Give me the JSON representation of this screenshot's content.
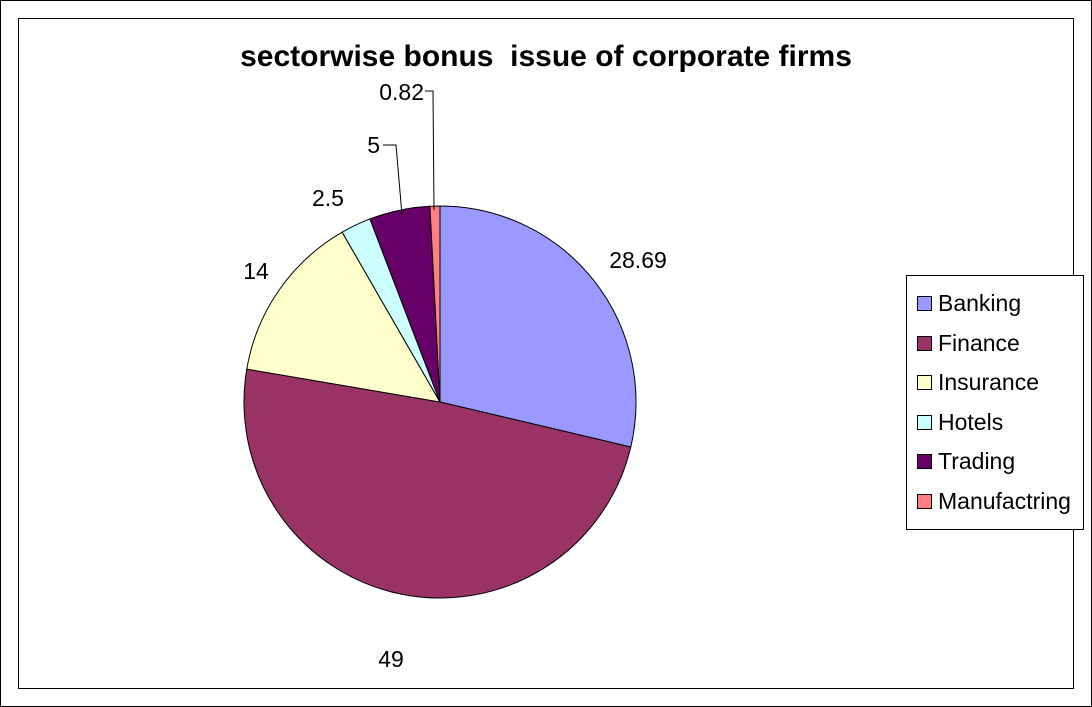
{
  "chart_data": {
    "type": "pie",
    "title": "sectorwise bonus  issue of corporate firms",
    "legend_position": "right",
    "slices": [
      {
        "label": "Banking",
        "value": 28.69,
        "display": "28.69",
        "color": "#9999FF"
      },
      {
        "label": "Finance",
        "value": 49,
        "display": "49",
        "color": "#993366"
      },
      {
        "label": "Insurance",
        "value": 14,
        "display": "14",
        "color": "#FFFFCC"
      },
      {
        "label": "Hotels",
        "value": 2.5,
        "display": "2.5",
        "color": "#CCFFFF"
      },
      {
        "label": "Trading",
        "value": 5,
        "display": "5",
        "color": "#660066"
      },
      {
        "label": "Manufactring",
        "value": 0.82,
        "display": "0.82",
        "color": "#FF8080"
      }
    ]
  }
}
